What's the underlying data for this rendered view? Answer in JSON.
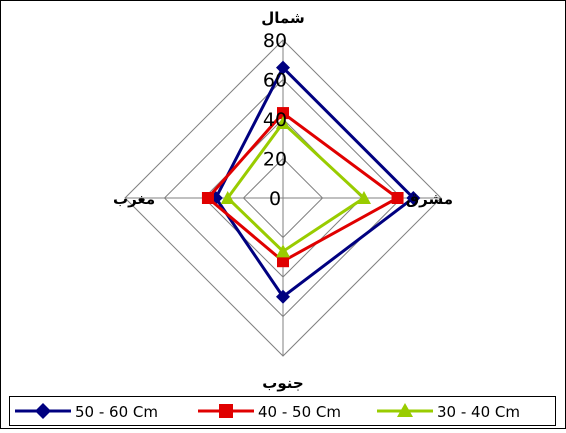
{
  "chart_data": {
    "type": "radar",
    "categories": [
      "شمال",
      "مشرق",
      "جنوب",
      "مغرب"
    ],
    "axis": {
      "min": 0,
      "max": 80,
      "ticks": [
        0,
        20,
        40,
        60,
        80
      ]
    },
    "series": [
      {
        "name": "50 - 60 Cm",
        "values": [
          66,
          66,
          50,
          34
        ],
        "color": "#000080",
        "marker": "diamond"
      },
      {
        "name": "40 - 50 Cm",
        "values": [
          43,
          58,
          32,
          38
        ],
        "color": "#e00000",
        "marker": "square"
      },
      {
        "name": "30 - 40 Cm",
        "values": [
          38,
          41,
          27,
          28
        ],
        "color": "#99cc00",
        "marker": "triangle"
      }
    ],
    "grid": true,
    "legend_position": "bottom"
  }
}
